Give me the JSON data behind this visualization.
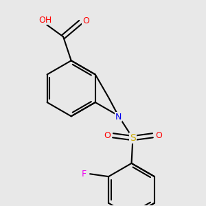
{
  "bg_color": "#e8e8e8",
  "atom_colors": {
    "C": "#000000",
    "O": "#ff0000",
    "N": "#0000ee",
    "S": "#ccaa00",
    "F": "#ee00ee",
    "H": "#007070"
  },
  "bond_color": "#000000",
  "figsize": [
    3.0,
    3.0
  ],
  "dpi": 100
}
